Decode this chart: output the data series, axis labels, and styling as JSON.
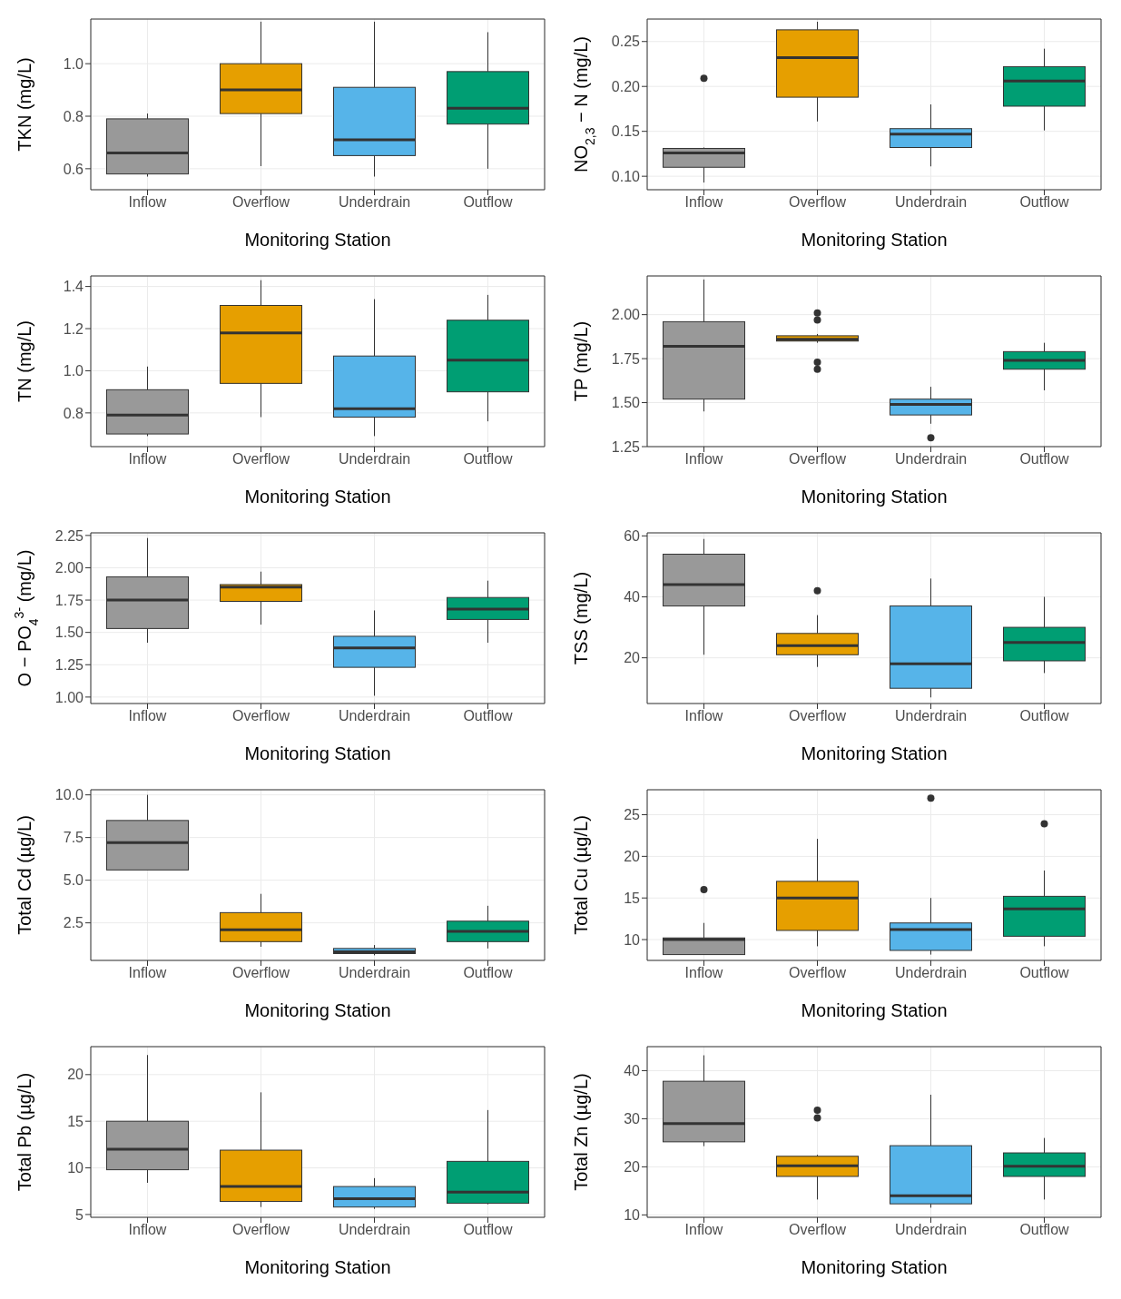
{
  "chart_data": [
    {
      "type": "box",
      "ylabel": "TKN (mg/L)",
      "xlabel": "Monitoring Station",
      "categories": [
        "Inflow",
        "Overflow",
        "Underdrain",
        "Outflow"
      ],
      "colors": [
        "#999999",
        "#e69f00",
        "#56b4e9",
        "#009e73"
      ],
      "ylim": [
        0.52,
        1.17
      ],
      "yticks": [
        0.6,
        0.8,
        {
          "value": 1,
          "label": "1.0"
        }
      ],
      "grid": true,
      "boxes": [
        {
          "low": 0.57,
          "q1": 0.58,
          "median": 0.66,
          "q3": 0.79,
          "high": 0.81
        },
        {
          "low": 0.61,
          "q1": 0.81,
          "median": 0.9,
          "q3": 1.0,
          "high": 1.16
        },
        {
          "low": 0.57,
          "q1": 0.65,
          "median": 0.71,
          "q3": 0.91,
          "high": 1.16
        },
        {
          "low": 0.6,
          "q1": 0.77,
          "median": 0.83,
          "q3": 0.97,
          "high": 1.12
        }
      ]
    },
    {
      "type": "box",
      "ylabel": "NO$_{2,3}$ − N (mg/L)",
      "xlabel": "Monitoring Station",
      "categories": [
        "Inflow",
        "Overflow",
        "Underdrain",
        "Outflow"
      ],
      "colors": [
        "#999999",
        "#e69f00",
        "#56b4e9",
        "#009e73"
      ],
      "ylim": [
        0.085,
        0.275
      ],
      "yticks": [
        {
          "value": 0.1,
          "label": "0.10"
        },
        0.15,
        {
          "value": 0.2,
          "label": "0.20"
        },
        0.25
      ],
      "grid": true,
      "boxes": [
        {
          "low": 0.093,
          "q1": 0.11,
          "median": 0.126,
          "q3": 0.131,
          "high": 0.132,
          "outliers": [
            0.209
          ]
        },
        {
          "low": 0.161,
          "q1": 0.188,
          "median": 0.232,
          "q3": 0.263,
          "high": 0.272
        },
        {
          "low": 0.111,
          "q1": 0.132,
          "median": 0.147,
          "q3": 0.153,
          "high": 0.18
        },
        {
          "low": 0.151,
          "q1": 0.178,
          "median": 0.206,
          "q3": 0.222,
          "high": 0.242
        }
      ]
    },
    {
      "type": "box",
      "ylabel": "TN (mg/L)",
      "xlabel": "Monitoring Station",
      "categories": [
        "Inflow",
        "Overflow",
        "Underdrain",
        "Outflow"
      ],
      "colors": [
        "#999999",
        "#e69f00",
        "#56b4e9",
        "#009e73"
      ],
      "ylim": [
        0.64,
        1.45
      ],
      "yticks": [
        0.8,
        {
          "value": 1,
          "label": "1.0"
        },
        1.2,
        1.4
      ],
      "grid": true,
      "boxes": [
        {
          "low": 0.69,
          "q1": 0.7,
          "median": 0.79,
          "q3": 0.91,
          "high": 1.02
        },
        {
          "low": 0.78,
          "q1": 0.94,
          "median": 1.18,
          "q3": 1.31,
          "high": 1.43
        },
        {
          "low": 0.69,
          "q1": 0.78,
          "median": 0.82,
          "q3": 1.07,
          "high": 1.34
        },
        {
          "low": 0.76,
          "q1": 0.9,
          "median": 1.05,
          "q3": 1.24,
          "high": 1.36
        }
      ]
    },
    {
      "type": "box",
      "ylabel": "TP (mg/L)",
      "xlabel": "Monitoring Station",
      "categories": [
        "Inflow",
        "Overflow",
        "Underdrain",
        "Outflow"
      ],
      "colors": [
        "#999999",
        "#e69f00",
        "#56b4e9",
        "#009e73"
      ],
      "ylim": [
        1.25,
        2.22
      ],
      "yticks": [
        1.25,
        {
          "value": 1.5,
          "label": "1.50"
        },
        1.75,
        {
          "value": 2,
          "label": "2.00"
        }
      ],
      "grid": true,
      "boxes": [
        {
          "low": 1.45,
          "q1": 1.52,
          "median": 1.82,
          "q3": 1.96,
          "high": 2.2
        },
        {
          "low": 1.84,
          "q1": 1.85,
          "median": 1.86,
          "q3": 1.88,
          "high": 1.89,
          "outliers": [
            2.01,
            1.97,
            1.73,
            1.69
          ]
        },
        {
          "low": 1.38,
          "q1": 1.43,
          "median": 1.49,
          "q3": 1.52,
          "high": 1.59,
          "outliers": [
            1.3
          ]
        },
        {
          "low": 1.57,
          "q1": 1.69,
          "median": 1.74,
          "q3": 1.79,
          "high": 1.84
        }
      ]
    },
    {
      "type": "box",
      "ylabel": "O − PO$_{4}$$^{3-}$ (mg/L)",
      "xlabel": "Monitoring Station",
      "categories": [
        "Inflow",
        "Overflow",
        "Underdrain",
        "Outflow"
      ],
      "colors": [
        "#999999",
        "#e69f00",
        "#56b4e9",
        "#009e73"
      ],
      "ylim": [
        0.95,
        2.27
      ],
      "yticks": [
        {
          "value": 1,
          "label": "1.00"
        },
        1.25,
        {
          "value": 1.5,
          "label": "1.50"
        },
        1.75,
        {
          "value": 2,
          "label": "2.00"
        },
        2.25
      ],
      "grid": true,
      "boxes": [
        {
          "low": 1.42,
          "q1": 1.53,
          "median": 1.75,
          "q3": 1.93,
          "high": 2.23
        },
        {
          "low": 1.56,
          "q1": 1.74,
          "median": 1.85,
          "q3": 1.87,
          "high": 1.97
        },
        {
          "low": 1.01,
          "q1": 1.23,
          "median": 1.38,
          "q3": 1.47,
          "high": 1.67
        },
        {
          "low": 1.42,
          "q1": 1.6,
          "median": 1.68,
          "q3": 1.77,
          "high": 1.9
        }
      ]
    },
    {
      "type": "box",
      "ylabel": "TSS (mg/L)",
      "xlabel": "Monitoring Station",
      "categories": [
        "Inflow",
        "Overflow",
        "Underdrain",
        "Outflow"
      ],
      "colors": [
        "#999999",
        "#e69f00",
        "#56b4e9",
        "#009e73"
      ],
      "ylim": [
        5,
        61
      ],
      "yticks": [
        20,
        40,
        60
      ],
      "grid": true,
      "boxes": [
        {
          "low": 21,
          "q1": 37,
          "median": 44,
          "q3": 54,
          "high": 59
        },
        {
          "low": 17,
          "q1": 21,
          "median": 24,
          "q3": 28,
          "high": 34,
          "outliers": [
            42
          ]
        },
        {
          "low": 7,
          "q1": 10,
          "median": 18,
          "q3": 37,
          "high": 46
        },
        {
          "low": 15,
          "q1": 19,
          "median": 25,
          "q3": 30,
          "high": 40
        }
      ]
    },
    {
      "type": "box",
      "ylabel": "Total Cd (µg/L)",
      "xlabel": "Monitoring Station",
      "categories": [
        "Inflow",
        "Overflow",
        "Underdrain",
        "Outflow"
      ],
      "colors": [
        "#999999",
        "#e69f00",
        "#56b4e9",
        "#009e73"
      ],
      "ylim": [
        0.3,
        10.3
      ],
      "yticks": [
        2.5,
        {
          "value": 5,
          "label": "5.0"
        },
        7.5,
        {
          "value": 10,
          "label": "10.0"
        }
      ],
      "grid": true,
      "boxes": [
        {
          "low": 5.6,
          "q1": 5.6,
          "median": 7.2,
          "q3": 8.5,
          "high": 10
        },
        {
          "low": 1.1,
          "q1": 1.4,
          "median": 2.1,
          "q3": 3.1,
          "high": 4.2
        },
        {
          "low": 0.6,
          "q1": 0.7,
          "median": 0.8,
          "q3": 1,
          "high": 1.2
        },
        {
          "low": 1,
          "q1": 1.4,
          "median": 2,
          "q3": 2.6,
          "high": 3.5
        }
      ]
    },
    {
      "type": "box",
      "ylabel": "Total Cu (µg/L)",
      "xlabel": "Monitoring Station",
      "categories": [
        "Inflow",
        "Overflow",
        "Underdrain",
        "Outflow"
      ],
      "colors": [
        "#999999",
        "#e69f00",
        "#56b4e9",
        "#009e73"
      ],
      "ylim": [
        7.5,
        28
      ],
      "yticks": [
        10,
        15,
        20,
        25
      ],
      "grid": true,
      "boxes": [
        {
          "low": 8.2,
          "q1": 8.2,
          "median": 10,
          "q3": 10.2,
          "high": 12,
          "outliers": [
            16
          ]
        },
        {
          "low": 9.2,
          "q1": 11.1,
          "median": 15,
          "q3": 17,
          "high": 22.1
        },
        {
          "low": 8.2,
          "q1": 8.7,
          "median": 11.2,
          "q3": 12,
          "high": 15,
          "outliers": [
            27
          ]
        },
        {
          "low": 9.2,
          "q1": 10.4,
          "median": 13.7,
          "q3": 15.2,
          "high": 18.3,
          "outliers": [
            23.9
          ]
        }
      ]
    },
    {
      "type": "box",
      "ylabel": "Total Pb (µg/L)",
      "xlabel": "Monitoring Station",
      "categories": [
        "Inflow",
        "Overflow",
        "Underdrain",
        "Outflow"
      ],
      "colors": [
        "#999999",
        "#e69f00",
        "#56b4e9",
        "#009e73"
      ],
      "ylim": [
        4.7,
        23
      ],
      "yticks": [
        5,
        10,
        15,
        20
      ],
      "grid": true,
      "boxes": [
        {
          "low": 8.4,
          "q1": 9.8,
          "median": 12,
          "q3": 15,
          "high": 22.1
        },
        {
          "low": 5.8,
          "q1": 6.4,
          "median": 8,
          "q3": 11.9,
          "high": 18.1
        },
        {
          "low": 5.6,
          "q1": 5.8,
          "median": 6.7,
          "q3": 8,
          "high": 8.9
        },
        {
          "low": 6.1,
          "q1": 6.2,
          "median": 7.4,
          "q3": 10.7,
          "high": 16.2
        }
      ]
    },
    {
      "type": "box",
      "ylabel": "Total Zn (µg/L)",
      "xlabel": "Monitoring Station",
      "categories": [
        "Inflow",
        "Overflow",
        "Underdrain",
        "Outflow"
      ],
      "colors": [
        "#999999",
        "#e69f00",
        "#56b4e9",
        "#009e73"
      ],
      "ylim": [
        9.5,
        45
      ],
      "yticks": [
        10,
        20,
        30,
        40
      ],
      "grid": true,
      "boxes": [
        {
          "low": 24.3,
          "q1": 25.2,
          "median": 29,
          "q3": 37.8,
          "high": 43.2
        },
        {
          "low": 13.2,
          "q1": 18,
          "median": 20.2,
          "q3": 22.2,
          "high": 22.5,
          "outliers": [
            31.8,
            30.2
          ]
        },
        {
          "low": 11.5,
          "q1": 12.3,
          "median": 14,
          "q3": 24.4,
          "high": 35
        },
        {
          "low": 13.2,
          "q1": 18,
          "median": 20.1,
          "q3": 22.9,
          "high": 26
        }
      ]
    }
  ]
}
